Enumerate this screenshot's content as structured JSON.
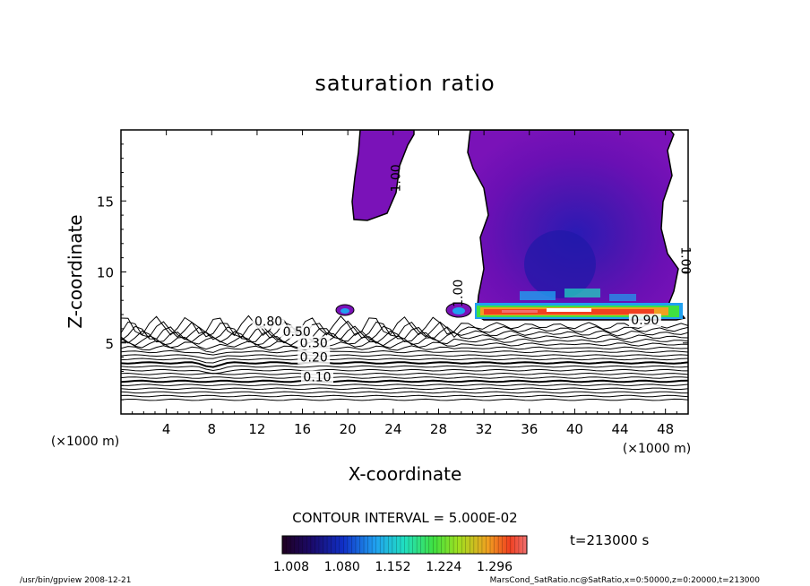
{
  "chart_data": {
    "type": "contour",
    "title": "saturation ratio",
    "xlabel": "X-coordinate",
    "ylabel": "Z-coordinate",
    "x_unit": "(×1000 m)",
    "xlim": [
      0,
      50
    ],
    "ylim": [
      0,
      20
    ],
    "xticks": [
      4,
      8,
      12,
      16,
      20,
      24,
      28,
      32,
      36,
      40,
      44,
      48
    ],
    "yticks": [
      5,
      10,
      15
    ],
    "contour_interval_text": "CONTOUR INTERVAL = 5.000E-02",
    "contour_labels": [
      {
        "text": "0.10",
        "x": 17.3,
        "z": 2.3
      },
      {
        "text": "0.20",
        "x": 17.0,
        "z": 3.7
      },
      {
        "text": "0.30",
        "x": 17.0,
        "z": 4.7
      },
      {
        "text": "0.50",
        "x": 15.5,
        "z": 5.5
      },
      {
        "text": "0.80",
        "x": 13.0,
        "z": 6.2
      },
      {
        "text": "1.00",
        "x": 24.6,
        "z": 16.6,
        "rotate": -90
      },
      {
        "text": "1.00",
        "x": 30.1,
        "z": 8.5,
        "rotate": -90
      },
      {
        "text": "1.00",
        "x": 49.4,
        "z": 10.8,
        "rotate": 90
      },
      {
        "text": "0.90",
        "x": 46.2,
        "z": 6.3
      }
    ],
    "colorbar": {
      "ticks": [
        "1.008",
        "1.080",
        "1.152",
        "1.224",
        "1.296"
      ],
      "colors": [
        "#200020",
        "#1a0a6a",
        "#1030c8",
        "#20a0f0",
        "#20e0c0",
        "#40e040",
        "#a0e020",
        "#f0a020",
        "#f04020",
        "#f07070"
      ]
    },
    "time_label": "t=213000 s"
  },
  "footer": {
    "left": "/usr/bin/gpview   2008-12-21",
    "right": "MarsCond_SatRatio.nc@SatRatio,x=0:50000,z=0:20000,t=213000"
  }
}
